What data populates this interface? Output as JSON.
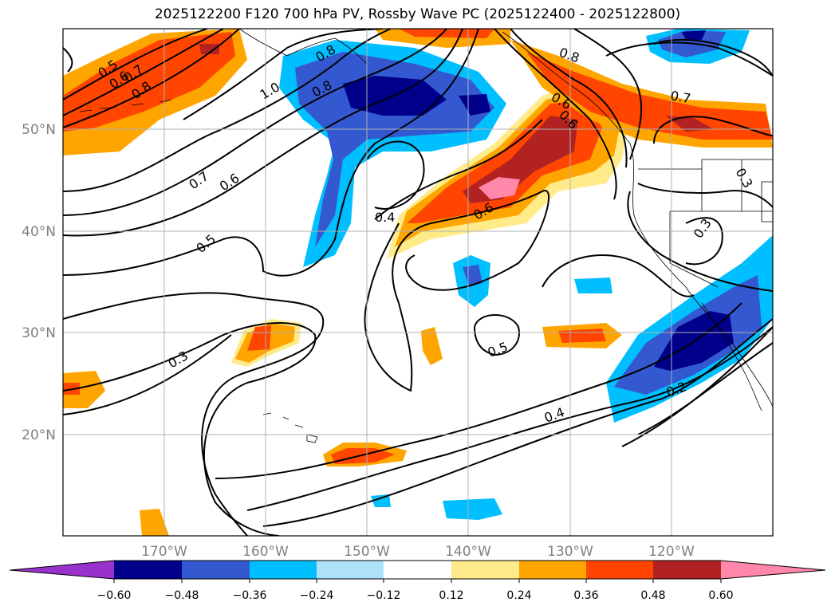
{
  "title": "2025122200 F120 700 hPa PV, Rossby Wave PC (2025122400 - 2025122800)",
  "map": {
    "lon_labels": [
      "170°W",
      "160°W",
      "150°W",
      "140°W",
      "130°W",
      "120°W"
    ],
    "lat_labels": [
      "50°N",
      "40°N",
      "30°N",
      "20°N"
    ],
    "contour_labels": [
      "0.5",
      "0.6",
      "0.7",
      "0.8",
      "1.0",
      "0.8",
      "0.8",
      "0.7",
      "0.6",
      "0.7",
      "0.6",
      "0.5",
      "0.4",
      "0.6",
      "0.5",
      "0.3",
      "0.4",
      "0.3",
      "0.2",
      "0.8",
      "0.6",
      "0.3"
    ]
  },
  "colorbar": {
    "ticks": [
      "−0.60",
      "−0.48",
      "−0.36",
      "−0.24",
      "−0.12",
      "0.12",
      "0.24",
      "0.36",
      "0.48",
      "0.60"
    ],
    "colors": [
      "#9932cc",
      "#00008b",
      "#3458cf",
      "#00bfff",
      "#ade2fa",
      "#ffffff",
      "#ffeb8a",
      "#ffa500",
      "#ff4500",
      "#b22222",
      "#ff88aa"
    ]
  }
}
